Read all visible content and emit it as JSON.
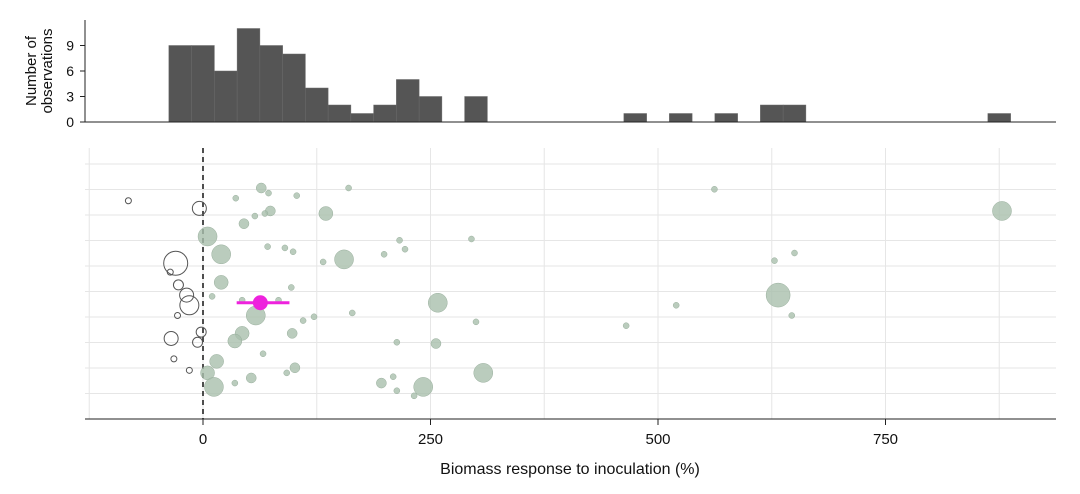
{
  "chart_data": [
    {
      "type": "histogram",
      "ylabel": [
        "Number of",
        "observations"
      ],
      "yticks": [
        0,
        3,
        6,
        9
      ],
      "ylim": [
        0,
        12
      ],
      "bin_width": 25,
      "bins": [
        {
          "start": -37.5,
          "count": 9
        },
        {
          "start": -12.5,
          "count": 9
        },
        {
          "start": 12.5,
          "count": 6
        },
        {
          "start": 37.5,
          "count": 11
        },
        {
          "start": 62.5,
          "count": 9
        },
        {
          "start": 87.5,
          "count": 8
        },
        {
          "start": 112.5,
          "count": 4
        },
        {
          "start": 137.5,
          "count": 2
        },
        {
          "start": 162.5,
          "count": 1
        },
        {
          "start": 187.5,
          "count": 2
        },
        {
          "start": 212.5,
          "count": 5
        },
        {
          "start": 237.5,
          "count": 3
        },
        {
          "start": 287.5,
          "count": 3
        },
        {
          "start": 462.5,
          "count": 1
        },
        {
          "start": 512.5,
          "count": 1
        },
        {
          "start": 562.5,
          "count": 1
        },
        {
          "start": 612.5,
          "count": 2
        },
        {
          "start": 637.5,
          "count": 2
        },
        {
          "start": 862.5,
          "count": 1
        }
      ],
      "colors": {
        "bar": "#555555"
      }
    },
    {
      "type": "scatter",
      "xlabel": "Biomass response to inoculation (%)",
      "xlim": [
        -130,
        940
      ],
      "xticks": [
        0,
        250,
        500,
        750
      ],
      "rows": 9,
      "reference_line_x": 0,
      "colors": {
        "positive": "#a9bfad",
        "negative_stroke": "#555555",
        "summary": "#ee22dd"
      },
      "summary": {
        "mean": 63,
        "ci_low": 37,
        "ci_high": 95,
        "row": 4.5
      },
      "points": [
        {
          "x": -82,
          "row": 8.5,
          "size": 1
        },
        {
          "x": 64,
          "row": 9.0,
          "size": 2
        },
        {
          "x": 72,
          "row": 8.8,
          "size": 1
        },
        {
          "x": 160,
          "row": 9.0,
          "size": 1
        },
        {
          "x": 36,
          "row": 8.6,
          "size": 1
        },
        {
          "x": 103,
          "row": 8.7,
          "size": 1
        },
        {
          "x": 562,
          "row": 8.95,
          "size": 1
        },
        {
          "x": -4,
          "row": 8.2,
          "size": 3
        },
        {
          "x": 74,
          "row": 8.1,
          "size": 2
        },
        {
          "x": 135,
          "row": 8.0,
          "size": 3
        },
        {
          "x": 57,
          "row": 7.9,
          "size": 1
        },
        {
          "x": 68,
          "row": 8.0,
          "size": 1
        },
        {
          "x": 45,
          "row": 7.6,
          "size": 2
        },
        {
          "x": 5,
          "row": 7.1,
          "size": 4
        },
        {
          "x": 878,
          "row": 8.1,
          "size": 4
        },
        {
          "x": 295,
          "row": 7.0,
          "size": 1
        },
        {
          "x": 216,
          "row": 6.95,
          "size": 1
        },
        {
          "x": 71,
          "row": 6.7,
          "size": 1
        },
        {
          "x": 90,
          "row": 6.65,
          "size": 1
        },
        {
          "x": 20,
          "row": 6.4,
          "size": 4
        },
        {
          "x": 155,
          "row": 6.2,
          "size": 4
        },
        {
          "x": 99,
          "row": 6.5,
          "size": 1
        },
        {
          "x": 199,
          "row": 6.4,
          "size": 1
        },
        {
          "x": 222,
          "row": 6.6,
          "size": 1
        },
        {
          "x": 132,
          "row": 6.1,
          "size": 1
        },
        {
          "x": 628,
          "row": 6.15,
          "size": 1
        },
        {
          "x": 650,
          "row": 6.45,
          "size": 1
        },
        {
          "x": -30,
          "row": 6.05,
          "size": 5
        },
        {
          "x": -36,
          "row": 5.7,
          "size": 1
        },
        {
          "x": -27,
          "row": 5.2,
          "size": 2
        },
        {
          "x": -18,
          "row": 4.8,
          "size": 3
        },
        {
          "x": -15,
          "row": 4.4,
          "size": 4
        },
        {
          "x": -28,
          "row": 4.0,
          "size": 1
        },
        {
          "x": 20,
          "row": 5.3,
          "size": 3
        },
        {
          "x": 10,
          "row": 4.75,
          "size": 1
        },
        {
          "x": 43,
          "row": 4.6,
          "size": 1
        },
        {
          "x": 58,
          "row": 4.0,
          "size": 4
        },
        {
          "x": 83,
          "row": 4.6,
          "size": 1
        },
        {
          "x": 97,
          "row": 5.1,
          "size": 1
        },
        {
          "x": 258,
          "row": 4.5,
          "size": 4
        },
        {
          "x": 520,
          "row": 4.4,
          "size": 1
        },
        {
          "x": 632,
          "row": 4.8,
          "size": 5
        },
        {
          "x": 647,
          "row": 4.0,
          "size": 1
        },
        {
          "x": 164,
          "row": 4.1,
          "size": 1
        },
        {
          "x": 300,
          "row": 3.75,
          "size": 1
        },
        {
          "x": 465,
          "row": 3.6,
          "size": 1
        },
        {
          "x": 110,
          "row": 3.8,
          "size": 1
        },
        {
          "x": 122,
          "row": 3.95,
          "size": 1
        },
        {
          "x": 43,
          "row": 3.3,
          "size": 3
        },
        {
          "x": 35,
          "row": 3.0,
          "size": 3
        },
        {
          "x": 98,
          "row": 3.3,
          "size": 2
        },
        {
          "x": -2,
          "row": 3.35,
          "size": 2
        },
        {
          "x": -35,
          "row": 3.1,
          "size": 3
        },
        {
          "x": -6,
          "row": 2.95,
          "size": 2
        },
        {
          "x": 213,
          "row": 2.95,
          "size": 1
        },
        {
          "x": 256,
          "row": 2.9,
          "size": 2
        },
        {
          "x": 66,
          "row": 2.5,
          "size": 1
        },
        {
          "x": 15,
          "row": 2.2,
          "size": 3
        },
        {
          "x": -32,
          "row": 2.3,
          "size": 1
        },
        {
          "x": 308,
          "row": 1.75,
          "size": 4
        },
        {
          "x": 101,
          "row": 1.95,
          "size": 2
        },
        {
          "x": 92,
          "row": 1.75,
          "size": 1
        },
        {
          "x": 5,
          "row": 1.75,
          "size": 3
        },
        {
          "x": -15,
          "row": 1.85,
          "size": 1
        },
        {
          "x": 53,
          "row": 1.55,
          "size": 2
        },
        {
          "x": 209,
          "row": 1.6,
          "size": 1
        },
        {
          "x": 12,
          "row": 1.2,
          "size": 4
        },
        {
          "x": 242,
          "row": 1.2,
          "size": 4
        },
        {
          "x": 196,
          "row": 1.35,
          "size": 2
        },
        {
          "x": 35,
          "row": 1.35,
          "size": 1
        },
        {
          "x": 213,
          "row": 1.05,
          "size": 1
        },
        {
          "x": 232,
          "row": 0.85,
          "size": 1
        }
      ]
    }
  ]
}
